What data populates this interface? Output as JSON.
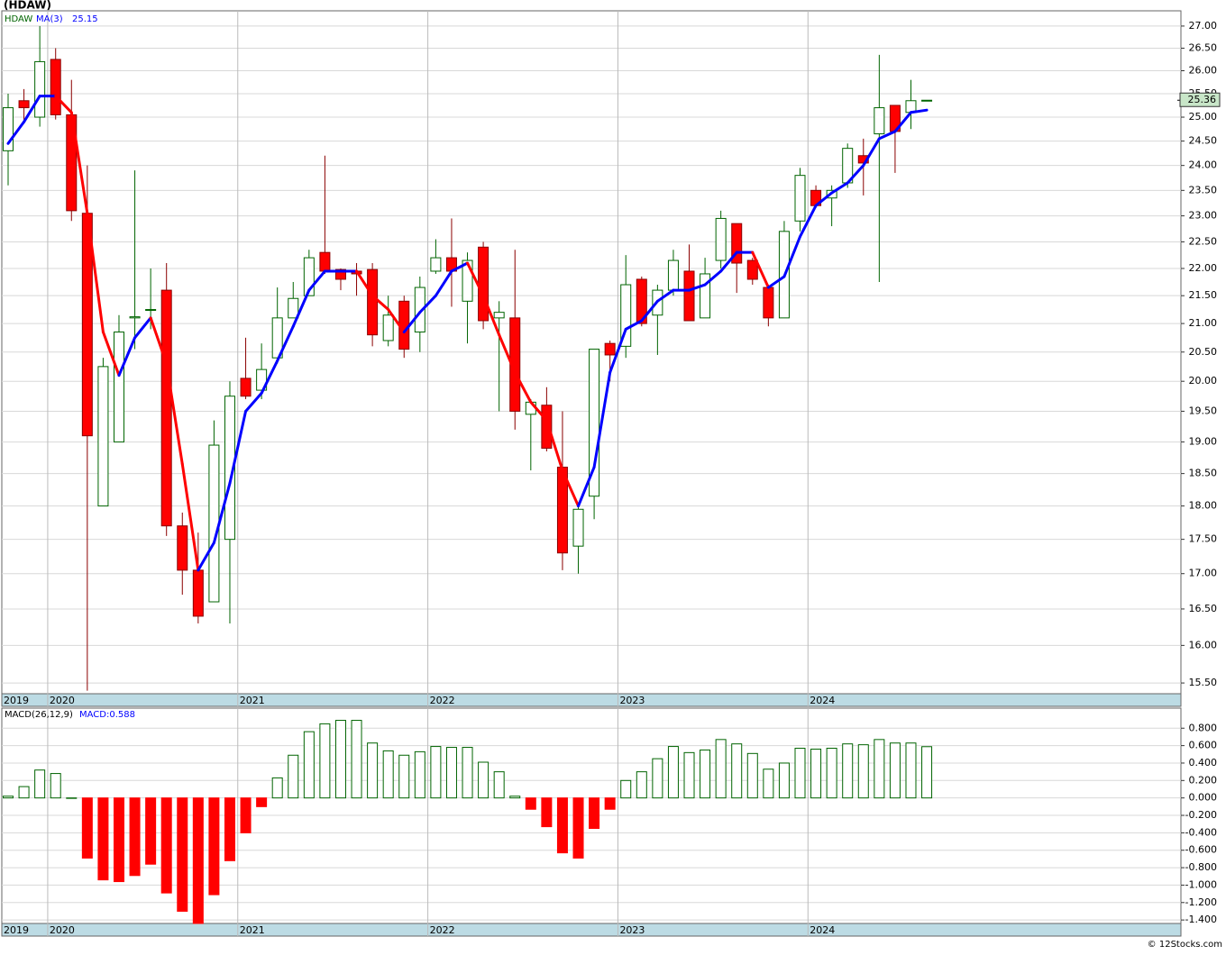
{
  "chart_data": [
    {
      "type": "candlestick",
      "title": "(HDAW)",
      "log_scale": true,
      "grid": true,
      "categories": [
        "2019",
        null,
        null,
        "2020",
        null,
        null,
        null,
        null,
        null,
        null,
        null,
        null,
        null,
        null,
        null,
        "2021",
        null,
        null,
        null,
        null,
        null,
        null,
        null,
        null,
        null,
        null,
        null,
        "2022",
        null,
        null,
        null,
        null,
        null,
        null,
        null,
        null,
        null,
        null,
        null,
        "2023",
        null,
        null,
        null,
        null,
        null,
        null,
        null,
        null,
        null,
        null,
        null,
        "2024",
        null,
        null,
        null,
        null,
        null,
        null,
        null
      ],
      "series": [
        {
          "name": "HDAW",
          "color": "#006400",
          "down_color": "#ff0000",
          "open": [
            24.3,
            25.35,
            25.0,
            26.25,
            25.05,
            23.05,
            18.0,
            19.0,
            21.1,
            21.25,
            21.6,
            17.7,
            17.05,
            16.6,
            17.5,
            20.05,
            19.85,
            20.4,
            21.1,
            21.5,
            22.3,
            21.98,
            21.95,
            21.98,
            20.7,
            21.4,
            20.85,
            21.95,
            22.2,
            21.4,
            22.4,
            21.1,
            21.1,
            19.45,
            19.6,
            18.6,
            17.4,
            18.15,
            20.65,
            20.6,
            21.8,
            21.15,
            21.6,
            21.95,
            21.1,
            22.15,
            22.85,
            22.15,
            21.65,
            21.1,
            22.9,
            23.5,
            23.35,
            23.65,
            24.2,
            24.65,
            25.25,
            25.1,
            25.36
          ],
          "high": [
            25.5,
            25.6,
            27.0,
            26.5,
            25.8,
            24.0,
            20.4,
            21.15,
            23.9,
            22.0,
            22.1,
            17.9,
            17.6,
            19.35,
            20.0,
            20.75,
            20.65,
            21.65,
            21.75,
            22.35,
            24.2,
            22.0,
            22.1,
            22.1,
            21.5,
            21.5,
            21.85,
            22.55,
            22.95,
            22.3,
            22.5,
            21.4,
            22.35,
            19.7,
            19.9,
            19.5,
            18.0,
            20.55,
            20.7,
            22.25,
            21.85,
            21.7,
            22.35,
            22.45,
            22.2,
            23.1,
            22.85,
            22.2,
            21.7,
            22.9,
            23.95,
            23.6,
            23.6,
            24.45,
            24.55,
            26.35,
            25.25,
            25.8,
            25.36
          ],
          "low": [
            23.6,
            24.9,
            24.8,
            24.95,
            22.9,
            15.4,
            18.0,
            19.0,
            20.55,
            20.9,
            17.55,
            16.7,
            16.3,
            16.6,
            16.3,
            19.7,
            19.7,
            20.3,
            21.1,
            21.5,
            21.9,
            21.6,
            21.5,
            20.6,
            20.6,
            20.4,
            20.5,
            21.9,
            21.3,
            20.65,
            20.9,
            19.5,
            19.2,
            18.55,
            18.85,
            17.05,
            17.0,
            17.8,
            20.0,
            20.4,
            20.95,
            20.45,
            21.5,
            21.05,
            21.1,
            22.0,
            21.55,
            21.7,
            20.95,
            21.1,
            22.7,
            23.15,
            22.8,
            23.55,
            23.4,
            21.75,
            23.85,
            24.75,
            25.36
          ],
          "close": [
            25.2,
            25.2,
            26.2,
            25.05,
            23.1,
            19.1,
            20.25,
            20.85,
            21.12,
            21.25,
            17.7,
            17.05,
            16.4,
            18.95,
            19.75,
            19.75,
            20.2,
            21.1,
            21.45,
            22.2,
            21.95,
            21.8,
            21.9,
            20.8,
            21.15,
            20.55,
            21.65,
            22.2,
            21.95,
            22.15,
            21.05,
            21.2,
            19.5,
            19.65,
            18.9,
            17.3,
            17.95,
            20.55,
            20.45,
            21.7,
            21.0,
            21.6,
            22.15,
            21.05,
            21.9,
            22.95,
            22.1,
            21.8,
            21.1,
            22.7,
            23.8,
            23.2,
            23.5,
            24.35,
            24.05,
            25.2,
            24.7,
            25.35,
            25.36
          ]
        },
        {
          "name": "MA(3)",
          "color": "#0000ff",
          "down_color": "#ff0000",
          "values": [
            24.45,
            24.9,
            25.45,
            25.45,
            25.1,
            23.05,
            20.85,
            20.1,
            20.75,
            21.1,
            20.3,
            18.65,
            17.05,
            17.45,
            18.35,
            19.5,
            19.8,
            20.35,
            20.95,
            21.6,
            21.95,
            21.95,
            21.95,
            21.5,
            21.25,
            20.85,
            21.2,
            21.5,
            21.95,
            22.1,
            21.5,
            20.8,
            20.15,
            19.65,
            19.35,
            18.55,
            18.0,
            18.6,
            20.15,
            20.9,
            21.05,
            21.4,
            21.6,
            21.6,
            21.7,
            21.95,
            22.3,
            22.3,
            21.65,
            21.85,
            22.6,
            23.2,
            23.45,
            23.65,
            24.0,
            24.55,
            24.7,
            25.1,
            25.15
          ]
        }
      ],
      "ylim": [
        15.36,
        27.35
      ],
      "yticks": [
        {
          "value": 15.5,
          "label": "15.50"
        },
        {
          "value": 16,
          "label": "16.00"
        },
        {
          "value": 16.5,
          "label": "16.50"
        },
        {
          "value": 17,
          "label": "17.00"
        },
        {
          "value": 17.5,
          "label": "17.50"
        },
        {
          "value": 18,
          "label": "18.00"
        },
        {
          "value": 18.5,
          "label": "18.50"
        },
        {
          "value": 19,
          "label": "19.00"
        },
        {
          "value": 19.5,
          "label": "19.50"
        },
        {
          "value": 20,
          "label": "20.00"
        },
        {
          "value": 20.5,
          "label": "20.50"
        },
        {
          "value": 21,
          "label": "21.00"
        },
        {
          "value": 21.5,
          "label": "21.50"
        },
        {
          "value": 22,
          "label": "22.00"
        },
        {
          "value": 22.5,
          "label": "22.50"
        },
        {
          "value": 23,
          "label": "23.00"
        },
        {
          "value": 23.5,
          "label": "23.50"
        },
        {
          "value": 24,
          "label": "24.00"
        },
        {
          "value": 24.5,
          "label": "24.50"
        },
        {
          "value": 25,
          "label": "25.00"
        },
        {
          "value": 25.5,
          "label": "25.50"
        },
        {
          "value": 26,
          "label": "26.00"
        },
        {
          "value": 26.5,
          "label": "26.50"
        },
        {
          "value": 27,
          "label": "27.00"
        }
      ]
    },
    {
      "type": "bar",
      "title": "MACD(26,12,9)",
      "legend_text": "MACD:0.588",
      "grid": true,
      "categories": [
        "2019",
        null,
        null,
        "2020",
        null,
        null,
        null,
        null,
        null,
        null,
        null,
        null,
        null,
        null,
        null,
        "2021",
        null,
        null,
        null,
        null,
        null,
        null,
        null,
        null,
        null,
        null,
        null,
        "2022",
        null,
        null,
        null,
        null,
        null,
        null,
        null,
        null,
        null,
        null,
        null,
        "2023",
        null,
        null,
        null,
        null,
        null,
        null,
        null,
        null,
        null,
        null,
        null,
        "2024",
        null,
        null,
        null,
        null,
        null,
        null,
        null
      ],
      "color": "#006400",
      "down_color": "#ff0000",
      "values": [
        0.02,
        0.13,
        0.32,
        0.28,
        0.0,
        -0.69,
        -0.94,
        -0.96,
        -0.89,
        -0.76,
        -1.09,
        -1.3,
        -1.44,
        -1.11,
        -0.72,
        -0.4,
        -0.1,
        0.23,
        0.49,
        0.76,
        0.85,
        0.89,
        0.89,
        0.63,
        0.54,
        0.49,
        0.53,
        0.59,
        0.58,
        0.58,
        0.41,
        0.3,
        0.02,
        -0.13,
        -0.33,
        -0.63,
        -0.69,
        -0.35,
        -0.13,
        0.2,
        0.3,
        0.45,
        0.59,
        0.52,
        0.55,
        0.67,
        0.62,
        0.51,
        0.33,
        0.4,
        0.57,
        0.56,
        0.57,
        0.62,
        0.61,
        0.67,
        0.63,
        0.63,
        0.588
      ],
      "ylim": [
        -1.44,
        1.03
      ],
      "yticks": [
        {
          "value": -1.4,
          "label": "-1.400"
        },
        {
          "value": -1.2,
          "label": "-1.200"
        },
        {
          "value": -1,
          "label": "-1.000"
        },
        {
          "value": -0.8,
          "label": "-0.800"
        },
        {
          "value": -0.6,
          "label": "-0.600"
        },
        {
          "value": -0.4,
          "label": "-0.400"
        },
        {
          "value": -0.2,
          "label": "-0.200"
        },
        {
          "value": 0,
          "label": "0.000"
        },
        {
          "value": 0.2,
          "label": "0.200"
        },
        {
          "value": 0.4,
          "label": "0.400"
        },
        {
          "value": 0.6,
          "label": "0.600"
        },
        {
          "value": 0.8,
          "label": "0.800"
        }
      ]
    }
  ],
  "footer": "© 12Stocks.com"
}
